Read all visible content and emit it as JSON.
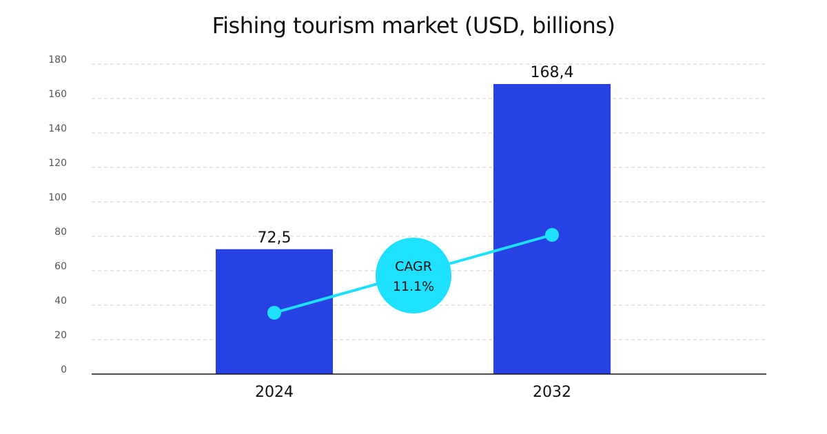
{
  "chart_data": {
    "type": "bar",
    "title": "Fishing tourism market (USD, billions)",
    "xlabel": "",
    "ylabel": "",
    "categories": [
      "2024",
      "2032"
    ],
    "values": [
      72.5,
      168.4
    ],
    "value_labels": [
      "72,5",
      "168,4"
    ],
    "ylim": [
      0,
      180
    ],
    "yticks": [
      0,
      20,
      40,
      60,
      80,
      100,
      120,
      140,
      160,
      180
    ],
    "grid": true,
    "legend": "none",
    "annotation": {
      "line1": "CAGR",
      "line2": "11.1%"
    }
  },
  "colors": {
    "bar": "#2841e3",
    "trend": "#1ee0ff",
    "grid": "#cfcfcf",
    "axis": "#111111"
  }
}
